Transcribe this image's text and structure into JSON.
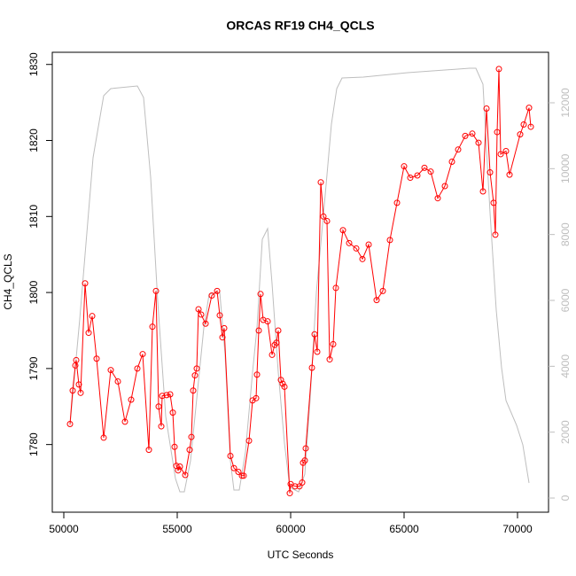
{
  "chart_data": {
    "type": "line",
    "title": "ORCAS RF19 CH4_QCLS",
    "xlabel": "UTC Seconds",
    "ylabel": "CH4_QCLS",
    "xlim": [
      49492,
      71367
    ],
    "ylim": [
      1771.1,
      1831.6
    ],
    "y2lim": [
      -430,
      13533
    ],
    "xticks": [
      50000,
      55000,
      60000,
      65000,
      70000
    ],
    "yticks": [
      1780,
      1790,
      1800,
      1810,
      1820,
      1830
    ],
    "y2ticks": [
      0,
      2000,
      4000,
      6000,
      8000,
      10000,
      12000
    ],
    "series": [
      {
        "color": "#bebebe",
        "axis": "y2",
        "x": [
          50273,
          50703,
          51289,
          51758,
          52070,
          53242,
          53516,
          53828,
          54141,
          54492,
          54922,
          55117,
          55313,
          55586,
          55859,
          56172,
          56406,
          56875,
          57109,
          57344,
          57500,
          57734,
          58008,
          58320,
          58516,
          58750,
          58984,
          59180,
          59453,
          59727,
          59961,
          60352,
          60625,
          60859,
          61133,
          61523,
          61797,
          62031,
          62266,
          63203,
          65156,
          67891,
          68164,
          68477,
          68789,
          69063,
          69297,
          69492,
          69961,
          70234,
          70508
        ],
        "values": [
          2206,
          5434,
          10331,
          12214,
          12429,
          12510,
          12160,
          9739,
          5972,
          2475,
          592,
          188,
          188,
          1130,
          3013,
          5165,
          6188,
          6242,
          4358,
          1130,
          242,
          242,
          1399,
          3820,
          5165,
          7856,
          8179,
          6511,
          3820,
          1668,
          323,
          188,
          726,
          3013,
          6242,
          9201,
          11353,
          12429,
          12752,
          12779,
          12914,
          13048,
          13048,
          12564,
          8663,
          5703,
          3955,
          2959,
          2206,
          1614,
          457
        ]
      },
      {
        "color": "#ff0000",
        "marker": "circle",
        "x": [
          50273,
          50391,
          50508,
          50547,
          50664,
          50742,
          50938,
          51094,
          51250,
          51445,
          51758,
          52070,
          52383,
          52695,
          52969,
          53242,
          53477,
          53750,
          53906,
          54063,
          54180,
          54297,
          54336,
          54531,
          54688,
          54805,
          54883,
          54961,
          55039,
          55117,
          55352,
          55547,
          55625,
          55703,
          55781,
          55859,
          55938,
          56055,
          56250,
          56523,
          56758,
          56875,
          56992,
          57070,
          57344,
          57500,
          57695,
          57852,
          57930,
          58164,
          58320,
          58477,
          58516,
          58594,
          58672,
          58789,
          58984,
          59180,
          59297,
          59375,
          59453,
          59570,
          59648,
          59727,
          59961,
          60000,
          60195,
          60391,
          60508,
          60547,
          60625,
          60664,
          60938,
          61055,
          61172,
          61328,
          61445,
          61602,
          61719,
          61875,
          61992,
          62305,
          62578,
          62891,
          63164,
          63438,
          63789,
          64063,
          64375,
          64688,
          65000,
          65273,
          65586,
          65898,
          66172,
          66484,
          66797,
          67109,
          67383,
          67695,
          68008,
          68281,
          68477,
          68633,
          68789,
          68945,
          69023,
          69102,
          69180,
          69258,
          69492,
          69648,
          70117,
          70273,
          70508,
          70586
        ],
        "values": [
          1782.7,
          1787.1,
          1790.4,
          1791.1,
          1787.9,
          1786.8,
          1801.2,
          1794.7,
          1796.9,
          1791.3,
          1780.9,
          1789.8,
          1788.3,
          1783.0,
          1785.9,
          1790.0,
          1791.9,
          1779.3,
          1795.5,
          1800.2,
          1785.0,
          1782.4,
          1786.4,
          1786.5,
          1786.6,
          1784.2,
          1779.7,
          1777.2,
          1776.6,
          1777.1,
          1776.0,
          1779.3,
          1781.0,
          1787.1,
          1789.1,
          1790.0,
          1797.8,
          1797.1,
          1795.9,
          1799.6,
          1800.2,
          1797.0,
          1794.1,
          1795.3,
          1778.5,
          1776.9,
          1776.4,
          1775.9,
          1775.9,
          1780.5,
          1785.8,
          1786.1,
          1789.2,
          1795.0,
          1799.8,
          1796.4,
          1796.2,
          1791.8,
          1793.1,
          1793.4,
          1795.0,
          1788.5,
          1788.0,
          1787.6,
          1773.6,
          1774.8,
          1774.5,
          1774.5,
          1775.0,
          1777.6,
          1777.9,
          1779.5,
          1790.1,
          1794.5,
          1792.2,
          1814.5,
          1810.0,
          1809.4,
          1791.2,
          1793.2,
          1800.6,
          1808.2,
          1806.5,
          1805.8,
          1804.4,
          1806.3,
          1799.0,
          1800.2,
          1806.9,
          1811.8,
          1816.6,
          1815.1,
          1815.4,
          1816.4,
          1815.9,
          1812.4,
          1814.0,
          1817.2,
          1818.8,
          1820.6,
          1820.9,
          1819.7,
          1813.3,
          1824.2,
          1815.8,
          1811.8,
          1807.6,
          1821.1,
          1829.4,
          1818.2,
          1818.6,
          1815.5,
          1820.8,
          1822.1,
          1824.3,
          1821.8
        ]
      }
    ]
  }
}
